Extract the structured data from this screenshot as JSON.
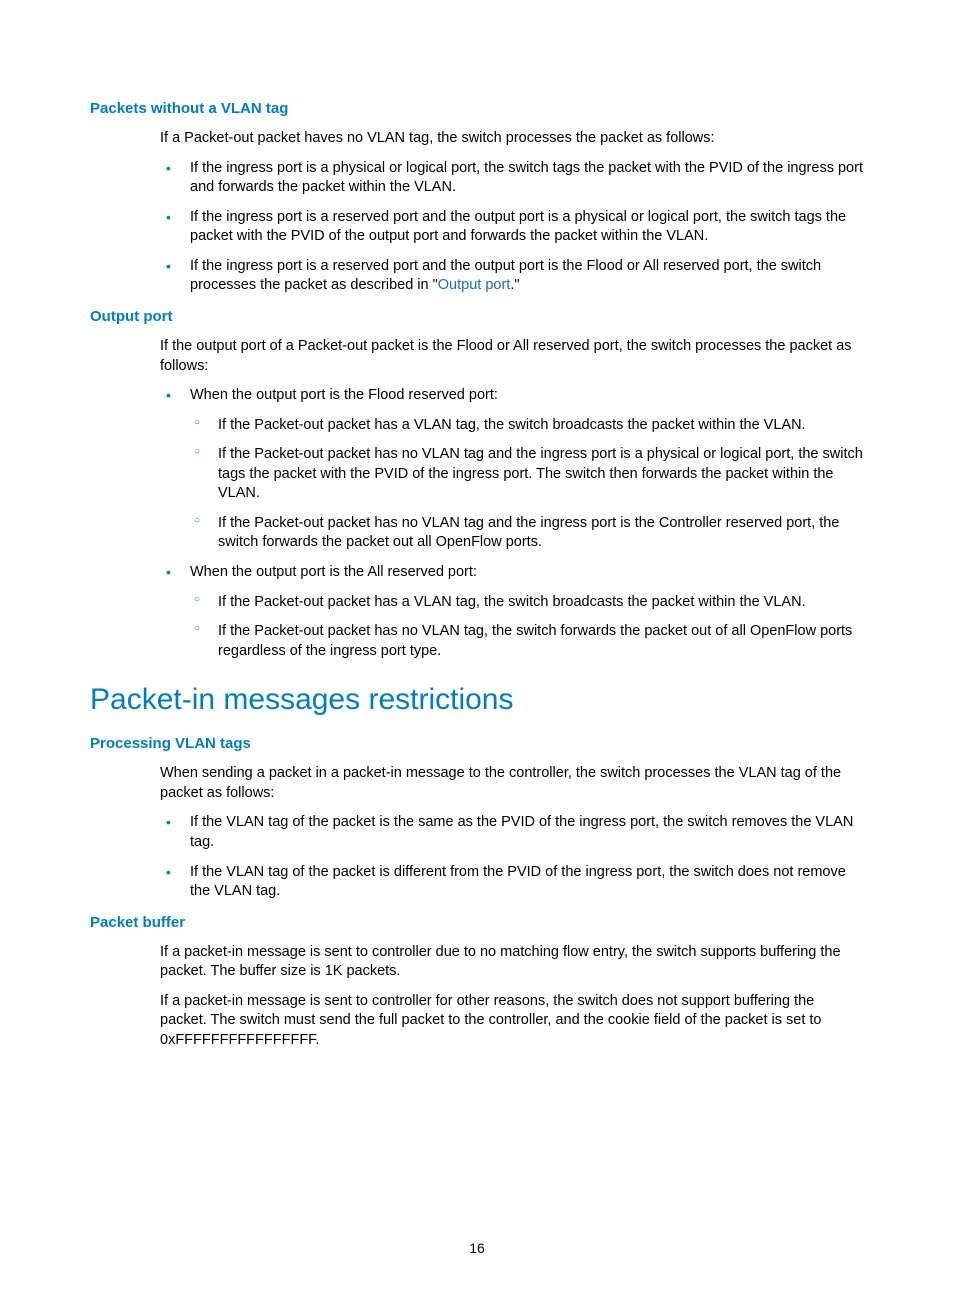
{
  "colors": {
    "heading": "#007cc0",
    "link": "#1a6fb0",
    "body": "#000000",
    "background": "#ffffff"
  },
  "typography": {
    "body_fontsize": 14.5,
    "h3_fontsize": 15,
    "h2_fontsize": 30,
    "line_height": 1.35
  },
  "page_number": "16",
  "section1": {
    "title": "Packets without a VLAN tag",
    "intro": "If a Packet-out packet haves no VLAN tag, the switch processes the packet as follows:",
    "b1": "If the ingress port is a physical or logical port, the switch tags the packet with the PVID of the ingress port and forwards the packet within the VLAN.",
    "b2": "If the ingress port is a reserved port and the output port is a physical or logical port, the switch tags the packet with the PVID of the output port and forwards the packet within the VLAN.",
    "b3_pre": "If the ingress port is a reserved port and the output port is the Flood or All reserved port, the switch processes the packet as described in \"",
    "b3_link": "Output port",
    "b3_post": ".\""
  },
  "section2": {
    "title": "Output port",
    "intro": "If the output port of a Packet-out packet is the Flood or All reserved port, the switch processes the packet as follows:",
    "b1": "When the output port is the Flood reserved port:",
    "b1_s1": "If the Packet-out packet has a VLAN tag, the switch broadcasts the packet within the VLAN.",
    "b1_s2": "If the Packet-out packet has no VLAN tag and the ingress port is a physical or logical port, the switch tags the packet with the PVID of the ingress port. The switch then forwards the packet within the VLAN.",
    "b1_s3": "If the Packet-out packet has no VLAN tag and the ingress port is the Controller reserved port, the switch forwards the packet out all OpenFlow ports.",
    "b2": "When the output port is the All reserved port:",
    "b2_s1": "If the Packet-out packet has a VLAN tag, the switch broadcasts the packet within the VLAN.",
    "b2_s2": "If the Packet-out packet has no VLAN tag, the switch forwards the packet out of all OpenFlow ports regardless of the ingress port type."
  },
  "section3": {
    "title": "Packet-in messages restrictions"
  },
  "section4": {
    "title": "Processing VLAN tags",
    "intro": "When sending a packet in a packet-in message to the controller, the switch processes the VLAN tag of the packet as follows:",
    "b1": "If the VLAN tag of the packet is the same as the PVID of the ingress port, the switch removes the VLAN tag.",
    "b2": "If the VLAN tag of the packet is different from the PVID of the ingress port, the switch does not remove the VLAN tag."
  },
  "section5": {
    "title": "Packet buffer",
    "p1": "If a packet-in message is sent to controller due to no matching flow entry, the switch supports buffering the packet. The buffer size is 1K packets.",
    "p2": "If a packet-in message is sent to controller for other reasons, the switch does not support buffering the packet. The switch must send the full packet to the controller, and the cookie field of the packet is set to 0xFFFFFFFFFFFFFFFF."
  }
}
